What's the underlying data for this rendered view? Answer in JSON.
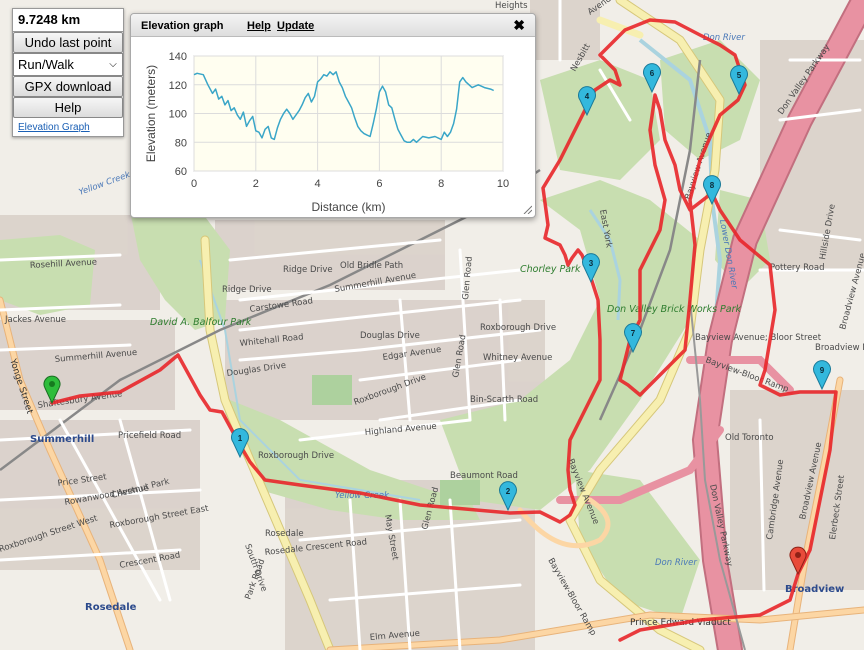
{
  "controls": {
    "distance": "9.7248 km",
    "undo_label": "Undo last point",
    "mode_value": "Run/Walk",
    "gpx_label": "GPX download",
    "help_label": "Help",
    "elevation_link": "Elevation Graph"
  },
  "elevation_window": {
    "title": "Elevation graph",
    "help_link": "Help",
    "update_link": "Update",
    "close_glyph": "✖"
  },
  "chart_data": {
    "type": "line",
    "xlabel": "Distance (km)",
    "ylabel": "Elevation (meters)",
    "xlim": [
      0,
      10
    ],
    "ylim": [
      60,
      140
    ],
    "xticks": [
      0,
      2,
      4,
      6,
      8,
      10
    ],
    "yticks": [
      60,
      80,
      100,
      120,
      140
    ],
    "grid": true,
    "color": "#3aa6c8",
    "x": [
      0,
      0.1,
      0.3,
      0.45,
      0.6,
      0.7,
      0.8,
      0.9,
      1.0,
      1.1,
      1.2,
      1.3,
      1.4,
      1.5,
      1.6,
      1.7,
      1.8,
      1.9,
      2.0,
      2.1,
      2.2,
      2.3,
      2.4,
      2.5,
      2.6,
      2.7,
      2.8,
      2.9,
      3.0,
      3.1,
      3.2,
      3.4,
      3.5,
      3.6,
      3.7,
      3.8,
      3.9,
      4.0,
      4.1,
      4.2,
      4.3,
      4.4,
      4.5,
      4.6,
      4.7,
      4.8,
      4.9,
      5.0,
      5.1,
      5.2,
      5.3,
      5.4,
      5.5,
      5.6,
      5.7,
      5.8,
      5.9,
      6.0,
      6.1,
      6.2,
      6.3,
      6.4,
      6.5,
      6.6,
      6.7,
      6.8,
      6.9,
      7.0,
      7.1,
      7.2,
      7.4,
      7.6,
      7.8,
      8.0,
      8.1,
      8.2,
      8.3,
      8.4,
      8.5,
      8.6,
      8.7,
      8.8,
      9.0,
      9.2,
      9.4,
      9.6,
      9.7
    ],
    "y": [
      127,
      128,
      127,
      120,
      114,
      117,
      110,
      112,
      106,
      109,
      102,
      104,
      99,
      96,
      101,
      91,
      95,
      98,
      88,
      87,
      83,
      89,
      91,
      83,
      82,
      90,
      96,
      100,
      103,
      100,
      96,
      102,
      106,
      111,
      114,
      108,
      112,
      122,
      124,
      127,
      126,
      129,
      127,
      129,
      122,
      118,
      112,
      108,
      104,
      97,
      91,
      88,
      86,
      85,
      84,
      93,
      103,
      115,
      119,
      115,
      106,
      104,
      96,
      89,
      85,
      81,
      80,
      80,
      82,
      80,
      84,
      83,
      84,
      82,
      87,
      84,
      87,
      93,
      103,
      122,
      125,
      122,
      118,
      120,
      118,
      117,
      116
    ]
  },
  "markers": [
    {
      "label": "1"
    },
    {
      "label": "2"
    },
    {
      "label": "3"
    },
    {
      "label": "4"
    },
    {
      "label": "5"
    },
    {
      "label": "6"
    },
    {
      "label": "7"
    },
    {
      "label": "8"
    },
    {
      "label": "9"
    }
  ],
  "map_labels": {
    "heights": "Heights",
    "yellow_creek_top": "Yellow Creek",
    "rosehill_ave": "Rosehill Avenue",
    "jackes_ave": "Jackes Avenue",
    "summerhill_ave": "Summerhill Avenue",
    "yonge_st": "Yonge Street",
    "shaftesbury": "Shaftesbury Avenue",
    "summerhill": "Summerhill",
    "price_st": "Price Street",
    "rowanwood": "Rowanwood Avenue",
    "pricefield": "Pricefield Road",
    "chestnut_park": "Chestnut Park",
    "roxborough_east": "Roxborough Street East",
    "roxborough_west": "Roxborough Street West",
    "crescent_rd": "Crescent Road",
    "rosedale": "Rosedale",
    "rosedale_station": "Rosedale",
    "balfour_park": "David A. Balfour Park",
    "carstowe": "Carstowe Road",
    "ridge_dr": "Ridge Drive",
    "ridge_dr2": "Ridge Drive",
    "old_bridle": "Old Bridle Path",
    "summerhill_ave2": "Summerhill Avenue",
    "whitehall": "Whitehall Road",
    "douglas_dr": "Douglas Drive",
    "douglas_dr2": "Douglas Drive",
    "edgar_ave": "Edgar Avenue",
    "roxborough_dr": "Roxborough Drive",
    "roxborough_dr2": "Roxborough Drive",
    "roxborough_dr3": "Roxborough Drive",
    "highland_ave": "Highland Avenue",
    "glen_rd": "Glen Road",
    "whitney_ave": "Whitney Avenue",
    "bin_scarth": "Bin-Scarth Road",
    "beaumont": "Beaumont Road",
    "yellow_creek": "Yellow Creek",
    "rosedale_crescent": "Rosedale Crescent Road",
    "chorley_park": "Chorley Park",
    "brick_works": "Don Valley Brick Works Park",
    "bayview_ave": "Bayview Avenue",
    "bayview_ave_n": "Bayview Avenue",
    "bayview_bloor": "Bayview Avenue; Bloor Street",
    "bayview_bloor_ramp": "Bayview-Bloor Ramp",
    "bayview_bloor_ramp2": "Bayview-Bloor Ramp",
    "old_toronto": "Old Toronto",
    "dvp": "Don Valley Parkway",
    "dvp2": "Don Valley Parkway",
    "don_river": "Don River",
    "don_river2": "Don River",
    "lower_don": "Lower Don River",
    "pottery_rd": "Pottery Road",
    "broadview_north": "Broadview North",
    "broadview_ave": "Broadview Avenue",
    "broadview_ave2": "Broadview Avenue",
    "broadview": "Broadview",
    "cambridge": "Cambridge Avenue",
    "elmerbeck": "Elerbeck Street",
    "hillside": "Hillside Drive",
    "prince_edward": "Prince Edward Viaduct",
    "east_york": "East York",
    "elm_ave": "Elm Avenue",
    "may_st": "May Street",
    "south_dr": "South Drive",
    "park_rd": "Park Road",
    "nesbitt": "Nesbitt",
    "avenue_top": "Avenue",
    "glen_rd2": "Glen Road",
    "glen_rd3": "Glen Road"
  }
}
